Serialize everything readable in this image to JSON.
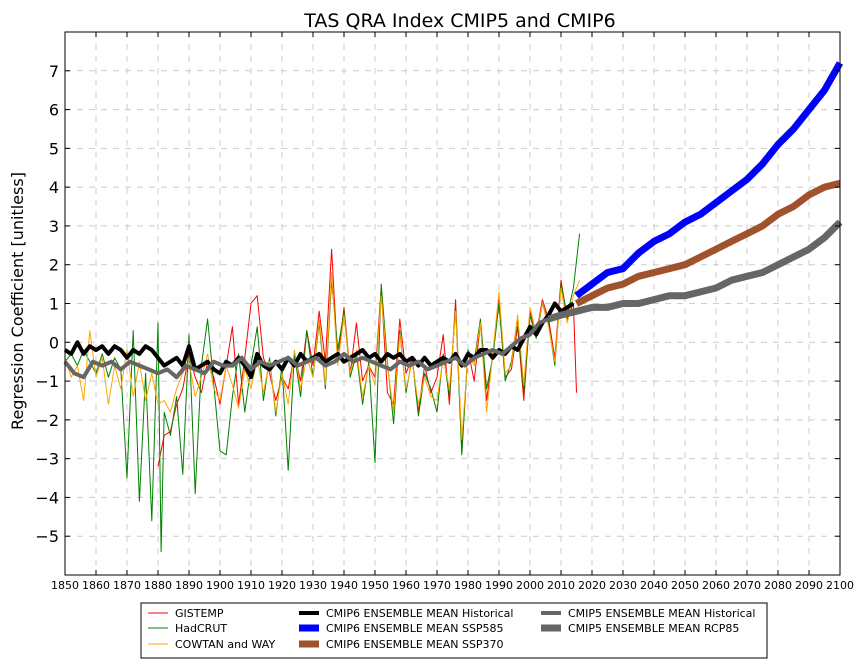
{
  "chart_data": {
    "type": "line",
    "title": "TAS QRA Index CMIP5 and CMIP6",
    "xlabel": "",
    "ylabel": "Regression Coefficient [unitless]",
    "xlim": [
      1850,
      2100
    ],
    "ylim": [
      -6,
      8
    ],
    "xticks": [
      1850,
      1860,
      1870,
      1880,
      1890,
      1900,
      1910,
      1920,
      1930,
      1940,
      1950,
      1960,
      1970,
      1980,
      1990,
      2000,
      2010,
      2020,
      2030,
      2040,
      2050,
      2060,
      2070,
      2080,
      2090,
      2100
    ],
    "yticks": [
      -5,
      -4,
      -3,
      -2,
      -1,
      0,
      1,
      2,
      3,
      4,
      5,
      6,
      7
    ],
    "ytick_labels": [
      "−5",
      "−4",
      "−3",
      "−2",
      "−1",
      "0",
      "1",
      "2",
      "3",
      "4",
      "5",
      "6",
      "7"
    ],
    "grid": true,
    "legend_position": "bottom-center",
    "series": [
      {
        "name": "GISTEMP",
        "color": "#ff0000",
        "width": 1,
        "x": [
          1880,
          1882,
          1884,
          1886,
          1888,
          1890,
          1892,
          1894,
          1896,
          1898,
          1900,
          1902,
          1904,
          1906,
          1908,
          1910,
          1912,
          1914,
          1916,
          1918,
          1920,
          1922,
          1924,
          1926,
          1928,
          1930,
          1932,
          1934,
          1936,
          1938,
          1940,
          1942,
          1944,
          1946,
          1948,
          1950,
          1952,
          1954,
          1956,
          1958,
          1960,
          1962,
          1964,
          1966,
          1968,
          1970,
          1972,
          1974,
          1976,
          1978,
          1980,
          1982,
          1984,
          1986,
          1988,
          1990,
          1992,
          1994,
          1996,
          1998,
          2000,
          2002,
          2004,
          2006,
          2008,
          2010,
          2012,
          2014,
          2015
        ],
        "y": [
          -3.2,
          -2.4,
          -2.3,
          -1.6,
          -1.2,
          -0.3,
          -0.9,
          -1.3,
          -0.5,
          -0.9,
          -1.6,
          -0.6,
          0.4,
          -1.6,
          -0.4,
          1.0,
          1.2,
          -0.4,
          -0.8,
          -1.5,
          -0.9,
          -1.2,
          -0.3,
          -1.0,
          0.3,
          -0.6,
          0.8,
          -0.5,
          2.4,
          -0.5,
          0.9,
          -0.8,
          0.5,
          -1.0,
          -0.6,
          -0.9,
          1.4,
          -1.3,
          -1.6,
          0.6,
          -0.8,
          -0.4,
          -1.8,
          -0.6,
          -1.3,
          -0.9,
          0.2,
          -1.6,
          1.1,
          -2.8,
          -0.2,
          -1.0,
          0.5,
          -1.5,
          -0.3,
          1.1,
          -0.9,
          -0.7,
          0.4,
          -1.5,
          0.8,
          0.2,
          1.1,
          0.6,
          -0.4,
          1.6,
          0.6,
          1.0,
          -1.3
        ]
      },
      {
        "name": "HadCRUT",
        "color": "#008000",
        "width": 1,
        "x": [
          1850,
          1852,
          1854,
          1856,
          1858,
          1860,
          1862,
          1864,
          1866,
          1868,
          1870,
          1872,
          1874,
          1876,
          1878,
          1880,
          1881,
          1882,
          1884,
          1886,
          1888,
          1890,
          1892,
          1894,
          1896,
          1898,
          1900,
          1902,
          1904,
          1906,
          1908,
          1910,
          1912,
          1914,
          1916,
          1918,
          1920,
          1922,
          1924,
          1926,
          1928,
          1930,
          1932,
          1934,
          1936,
          1938,
          1940,
          1942,
          1944,
          1946,
          1948,
          1950,
          1952,
          1954,
          1956,
          1958,
          1960,
          1962,
          1964,
          1966,
          1968,
          1970,
          1972,
          1974,
          1976,
          1978,
          1980,
          1982,
          1984,
          1986,
          1988,
          1990,
          1992,
          1994,
          1996,
          1998,
          2000,
          2002,
          2004,
          2006,
          2008,
          2010,
          2012,
          2014,
          2016
        ],
        "y": [
          -0.5,
          -0.3,
          -0.6,
          -0.2,
          -0.5,
          -0.8,
          -0.3,
          -0.9,
          -0.4,
          -0.7,
          -3.5,
          0.3,
          -4.1,
          -0.8,
          -4.6,
          0.5,
          -5.4,
          -1.8,
          -2.4,
          -1.4,
          -3.4,
          0.2,
          -3.9,
          -0.6,
          0.6,
          -1.1,
          -2.8,
          -2.9,
          -1.4,
          -0.3,
          -1.8,
          -0.6,
          0.4,
          -1.5,
          -0.4,
          -1.9,
          -0.6,
          -3.3,
          -0.3,
          -1.4,
          0.3,
          -0.9,
          0.5,
          -1.2,
          1.6,
          -0.2,
          0.8,
          -0.9,
          -0.3,
          -1.6,
          -0.5,
          -3.1,
          1.5,
          -0.5,
          -2.1,
          0.3,
          -1.3,
          -0.4,
          -1.9,
          -0.8,
          -1.2,
          -1.8,
          -0.3,
          -1.4,
          0.9,
          -2.9,
          -0.2,
          -0.5,
          0.6,
          -1.2,
          -0.4,
          1.0,
          -1.0,
          -0.5,
          0.6,
          -1.3,
          0.7,
          0.1,
          1.0,
          0.5,
          -0.6,
          1.5,
          0.7,
          1.4,
          2.8
        ]
      },
      {
        "name": "COWTAN and WAY",
        "color": "#ffa500",
        "width": 1,
        "x": [
          1850,
          1852,
          1854,
          1856,
          1858,
          1860,
          1862,
          1864,
          1866,
          1868,
          1870,
          1872,
          1874,
          1876,
          1878,
          1880,
          1882,
          1884,
          1886,
          1888,
          1890,
          1892,
          1894,
          1896,
          1898,
          1900,
          1902,
          1904,
          1906,
          1908,
          1910,
          1912,
          1914,
          1916,
          1918,
          1920,
          1922,
          1924,
          1926,
          1928,
          1930,
          1932,
          1934,
          1936,
          1938,
          1940,
          1942,
          1944,
          1946,
          1948,
          1950,
          1952,
          1954,
          1956,
          1958,
          1960,
          1962,
          1964,
          1966,
          1968,
          1970,
          1972,
          1974,
          1976,
          1978,
          1980,
          1982,
          1984,
          1986,
          1988,
          1990,
          1992,
          1994,
          1996,
          1998,
          2000,
          2002,
          2004,
          2006,
          2008,
          2010,
          2012,
          2014,
          2016
        ],
        "y": [
          -0.4,
          -0.9,
          -0.6,
          -1.5,
          0.3,
          -0.9,
          -0.4,
          -1.6,
          -0.6,
          -1.2,
          -0.2,
          -1.4,
          -0.5,
          -1.5,
          -0.8,
          -1.6,
          -1.5,
          -1.8,
          -1.2,
          -0.8,
          -0.5,
          -1.4,
          -0.9,
          -0.3,
          -1.2,
          -1.5,
          -0.6,
          -1.1,
          -1.7,
          -0.7,
          -1.2,
          -0.4,
          -1.3,
          -0.5,
          -1.8,
          -0.8,
          -1.6,
          -0.2,
          -1.2,
          -0.4,
          -0.9,
          0.6,
          -1.1,
          1.8,
          -0.6,
          0.7,
          -0.8,
          -0.2,
          -1.4,
          -0.6,
          -1.1,
          1.2,
          -0.6,
          -1.8,
          0.2,
          -1.2,
          -0.5,
          -1.6,
          -0.9,
          -1.4,
          -1.5,
          -0.4,
          -1.2,
          0.8,
          -2.5,
          -0.3,
          -0.6,
          0.5,
          -1.8,
          -0.3,
          1.3,
          -0.8,
          -0.6,
          0.7,
          -1.1,
          0.9,
          0.2,
          1.0,
          0.4,
          -0.5,
          1.4,
          0.5,
          1.2,
          1.6
        ]
      },
      {
        "name": "CMIP6 ENSEMBLE MEAN Historical",
        "color": "#000000",
        "width": 4,
        "x": [
          1850,
          1852,
          1854,
          1856,
          1858,
          1860,
          1862,
          1864,
          1866,
          1868,
          1870,
          1872,
          1874,
          1876,
          1878,
          1880,
          1882,
          1884,
          1886,
          1888,
          1890,
          1892,
          1894,
          1896,
          1898,
          1900,
          1902,
          1904,
          1906,
          1908,
          1910,
          1912,
          1914,
          1916,
          1918,
          1920,
          1922,
          1924,
          1926,
          1928,
          1930,
          1932,
          1934,
          1936,
          1938,
          1940,
          1942,
          1944,
          1946,
          1948,
          1950,
          1952,
          1954,
          1956,
          1958,
          1960,
          1962,
          1964,
          1966,
          1968,
          1970,
          1972,
          1974,
          1976,
          1978,
          1980,
          1982,
          1984,
          1986,
          1988,
          1990,
          1992,
          1994,
          1996,
          1998,
          2000,
          2002,
          2004,
          2006,
          2008,
          2010,
          2012,
          2014
        ],
        "y": [
          -0.2,
          -0.3,
          0.0,
          -0.3,
          -0.1,
          -0.2,
          -0.1,
          -0.3,
          -0.1,
          -0.2,
          -0.4,
          -0.2,
          -0.3,
          -0.1,
          -0.2,
          -0.4,
          -0.6,
          -0.5,
          -0.4,
          -0.6,
          -0.1,
          -0.7,
          -0.6,
          -0.5,
          -0.7,
          -0.8,
          -0.5,
          -0.6,
          -0.4,
          -0.6,
          -0.9,
          -0.3,
          -0.6,
          -0.7,
          -0.5,
          -0.7,
          -0.4,
          -0.6,
          -0.3,
          -0.5,
          -0.4,
          -0.3,
          -0.5,
          -0.4,
          -0.3,
          -0.5,
          -0.4,
          -0.3,
          -0.2,
          -0.4,
          -0.3,
          -0.5,
          -0.3,
          -0.4,
          -0.3,
          -0.5,
          -0.4,
          -0.6,
          -0.4,
          -0.6,
          -0.5,
          -0.4,
          -0.5,
          -0.3,
          -0.6,
          -0.3,
          -0.4,
          -0.2,
          -0.2,
          -0.4,
          -0.2,
          -0.3,
          -0.1,
          -0.2,
          0.1,
          0.4,
          0.2,
          0.5,
          0.7,
          1.0,
          0.8,
          0.9,
          1.0
        ]
      },
      {
        "name": "CMIP6 ENSEMBLE MEAN SSP585",
        "color": "#0000ff",
        "width": 7,
        "x": [
          2015,
          2020,
          2025,
          2030,
          2035,
          2040,
          2045,
          2050,
          2055,
          2060,
          2065,
          2070,
          2075,
          2080,
          2085,
          2090,
          2095,
          2100
        ],
        "y": [
          1.2,
          1.5,
          1.8,
          1.9,
          2.3,
          2.6,
          2.8,
          3.1,
          3.3,
          3.6,
          3.9,
          4.2,
          4.6,
          5.1,
          5.5,
          6.0,
          6.5,
          7.2
        ]
      },
      {
        "name": "CMIP6 ENSEMBLE MEAN SSP370",
        "color": "#a0522d",
        "width": 7,
        "x": [
          2015,
          2020,
          2025,
          2030,
          2035,
          2040,
          2045,
          2050,
          2055,
          2060,
          2065,
          2070,
          2075,
          2080,
          2085,
          2090,
          2095,
          2100
        ],
        "y": [
          1.0,
          1.2,
          1.4,
          1.5,
          1.7,
          1.8,
          1.9,
          2.0,
          2.2,
          2.4,
          2.6,
          2.8,
          3.0,
          3.3,
          3.5,
          3.8,
          4.0,
          4.1
        ]
      },
      {
        "name": "CMIP5 ENSEMBLE MEAN Historical",
        "color": "#666666",
        "width": 4,
        "x": [
          1850,
          1853,
          1856,
          1859,
          1862,
          1865,
          1868,
          1871,
          1874,
          1877,
          1880,
          1883,
          1886,
          1889,
          1892,
          1895,
          1898,
          1901,
          1904,
          1907,
          1910,
          1913,
          1916,
          1919,
          1922,
          1925,
          1928,
          1931,
          1934,
          1937,
          1940,
          1943,
          1946,
          1949,
          1952,
          1955,
          1958,
          1961,
          1964,
          1967,
          1970,
          1973,
          1976,
          1979,
          1982,
          1985,
          1988,
          1991,
          1994,
          1997,
          2000,
          2003,
          2006
        ],
        "y": [
          -0.5,
          -0.8,
          -0.9,
          -0.5,
          -0.6,
          -0.5,
          -0.7,
          -0.5,
          -0.6,
          -0.7,
          -0.8,
          -0.7,
          -0.9,
          -0.6,
          -0.7,
          -0.8,
          -0.5,
          -0.6,
          -0.6,
          -0.4,
          -0.7,
          -0.5,
          -0.6,
          -0.5,
          -0.4,
          -0.6,
          -0.5,
          -0.4,
          -0.6,
          -0.5,
          -0.3,
          -0.5,
          -0.4,
          -0.5,
          -0.6,
          -0.7,
          -0.5,
          -0.6,
          -0.5,
          -0.7,
          -0.6,
          -0.5,
          -0.4,
          -0.6,
          -0.4,
          -0.3,
          -0.2,
          -0.3,
          -0.1,
          0.1,
          0.2,
          0.5,
          0.6
        ]
      },
      {
        "name": "CMIP5 ENSEMBLE MEAN RCP85",
        "color": "#666666",
        "width": 7,
        "x": [
          2006,
          2010,
          2015,
          2020,
          2025,
          2030,
          2035,
          2040,
          2045,
          2050,
          2055,
          2060,
          2065,
          2070,
          2075,
          2080,
          2085,
          2090,
          2095,
          2100
        ],
        "y": [
          0.6,
          0.7,
          0.8,
          0.9,
          0.9,
          1.0,
          1.0,
          1.1,
          1.2,
          1.2,
          1.3,
          1.4,
          1.6,
          1.7,
          1.8,
          2.0,
          2.2,
          2.4,
          2.7,
          3.1
        ]
      }
    ],
    "legend": [
      {
        "name": "GISTEMP",
        "color": "#ff0000",
        "width": 1
      },
      {
        "name": "HadCRUT",
        "color": "#008000",
        "width": 1
      },
      {
        "name": "COWTAN and WAY",
        "color": "#ffa500",
        "width": 1
      },
      {
        "name": "CMIP6 ENSEMBLE MEAN Historical",
        "color": "#000000",
        "width": 4
      },
      {
        "name": "CMIP6 ENSEMBLE MEAN SSP585",
        "color": "#0000ff",
        "width": 7
      },
      {
        "name": "CMIP6 ENSEMBLE MEAN SSP370",
        "color": "#a0522d",
        "width": 7
      },
      {
        "name": "CMIP5 ENSEMBLE MEAN Historical",
        "color": "#666666",
        "width": 4
      },
      {
        "name": "CMIP5 ENSEMBLE MEAN RCP85",
        "color": "#666666",
        "width": 7
      }
    ]
  }
}
